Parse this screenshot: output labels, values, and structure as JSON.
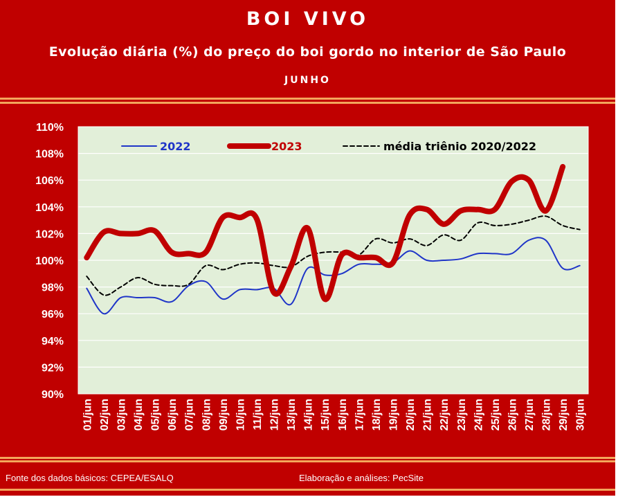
{
  "header": {
    "title": "BOI VIVO",
    "subtitle": "Evolução diária (%) do preço do boi gordo no interior de São Paulo",
    "month": "JUNHO"
  },
  "footer": {
    "source": "Fonte dos dados básicos: CEPEA/ESALQ",
    "credit": "Elaboração e análises: PecSite"
  },
  "colors": {
    "frame": "#c00000",
    "plot_background": "#e2efd9",
    "series_2022": "#1f35c8",
    "series_2023": "#c00000",
    "series_media": "#000000"
  },
  "chart_data": {
    "type": "line",
    "ylim": [
      90,
      110
    ],
    "y_ticks": [
      "90%",
      "92%",
      "94%",
      "96%",
      "98%",
      "100%",
      "102%",
      "104%",
      "106%",
      "108%",
      "110%"
    ],
    "grid": true,
    "legend_position": "top",
    "categories": [
      "01/jun",
      "02/jun",
      "03/jun",
      "04/jun",
      "05/jun",
      "06/jun",
      "07/jun",
      "08/jun",
      "09/jun",
      "10/jun",
      "11/jun",
      "12/jun",
      "13/jun",
      "14/jun",
      "15/jun",
      "16/jun",
      "17/jun",
      "18/jun",
      "19/jun",
      "20/jun",
      "21/jun",
      "22/jun",
      "23/jun",
      "24/jun",
      "25/jun",
      "26/jun",
      "27/jun",
      "28/jun",
      "29/jun",
      "30/jun"
    ],
    "series": [
      {
        "name": "2022",
        "values": [
          97.9,
          96.0,
          97.2,
          97.2,
          97.2,
          96.9,
          98.1,
          98.4,
          97.1,
          97.8,
          97.8,
          97.9,
          96.7,
          99.4,
          98.9,
          99.0,
          99.7,
          99.7,
          99.8,
          100.7,
          100.0,
          100.0,
          100.1,
          100.5,
          100.5,
          100.5,
          101.5,
          101.5,
          99.4,
          99.6
        ],
        "color": "#1f35c8"
      },
      {
        "name": "2023",
        "values": [
          100.2,
          102.1,
          102.0,
          102.0,
          102.2,
          100.6,
          100.5,
          100.6,
          103.2,
          103.2,
          103.1,
          97.6,
          99.5,
          102.4,
          97.1,
          100.4,
          100.2,
          100.2,
          99.8,
          103.4,
          103.8,
          102.7,
          103.7,
          103.8,
          103.8,
          105.9,
          106.0,
          103.7,
          107.0,
          null
        ],
        "color": "#c00000"
      },
      {
        "name": "média triênio 2020/2022",
        "values": [
          98.8,
          97.4,
          98.0,
          98.7,
          98.2,
          98.1,
          98.2,
          99.6,
          99.3,
          99.7,
          99.8,
          99.6,
          99.5,
          100.3,
          100.6,
          100.6,
          100.4,
          101.6,
          101.3,
          101.6,
          101.1,
          101.9,
          101.5,
          102.8,
          102.6,
          102.7,
          103.0,
          103.3,
          102.6,
          102.3
        ],
        "color": "#000000"
      }
    ]
  }
}
